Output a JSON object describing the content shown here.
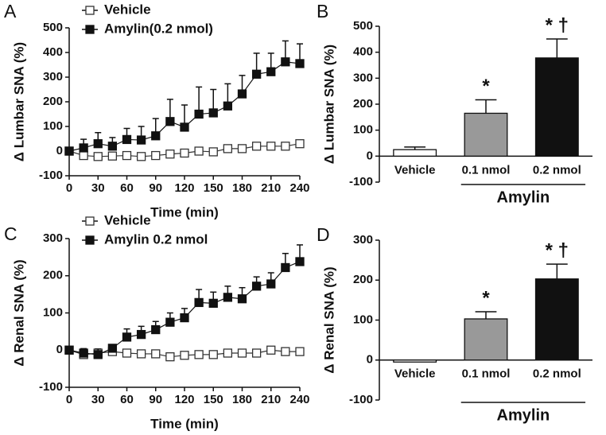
{
  "chart_data": [
    {
      "type": "line",
      "panel": "A",
      "xlabel": "Time (min)",
      "ylabel": "Δ Lumbar  SNA (%)",
      "x": [
        0,
        15,
        30,
        45,
        60,
        75,
        90,
        105,
        120,
        135,
        150,
        165,
        180,
        195,
        210,
        225,
        240
      ],
      "xlim": [
        0,
        240
      ],
      "xticks": [
        0,
        30,
        60,
        90,
        120,
        150,
        180,
        210,
        240
      ],
      "ylim": [
        -100,
        500
      ],
      "yticks": [
        -100,
        0,
        100,
        200,
        300,
        400,
        500
      ],
      "series": [
        {
          "name": "Vehicle",
          "color": "#333333",
          "marker": "open-square",
          "values": [
            0,
            -18,
            -22,
            -20,
            -18,
            -22,
            -18,
            -12,
            -8,
            0,
            -3,
            10,
            10,
            20,
            20,
            20,
            30
          ],
          "errors": [
            0,
            8,
            8,
            8,
            8,
            8,
            8,
            8,
            8,
            8,
            10,
            8,
            8,
            8,
            8,
            8,
            8
          ]
        },
        {
          "name": "Amylin(0.2 nmol)",
          "color": "#111111",
          "marker": "filled-square",
          "values": [
            0,
            13,
            30,
            20,
            47,
            45,
            62,
            120,
            97,
            150,
            155,
            183,
            232,
            312,
            322,
            362,
            355
          ],
          "errors": [
            0,
            35,
            45,
            35,
            45,
            55,
            70,
            90,
            90,
            110,
            95,
            90,
            75,
            85,
            75,
            85,
            80
          ]
        }
      ]
    },
    {
      "type": "bar",
      "panel": "B",
      "ylabel": "Δ Lumbar SNA (%)",
      "categories": [
        "Vehicle",
        "0.1 nmol",
        "0.2 nmol"
      ],
      "values": [
        25,
        165,
        378
      ],
      "errors": [
        10,
        52,
        73
      ],
      "colors": [
        "#ffffff",
        "#999999",
        "#111111"
      ],
      "annotations": [
        null,
        "*",
        "* †"
      ],
      "group_label": "Amylin",
      "ylim": [
        -100,
        500
      ],
      "yticks": [
        -100,
        0,
        100,
        200,
        300,
        400,
        500
      ]
    },
    {
      "type": "line",
      "panel": "C",
      "xlabel": "Time (min)",
      "ylabel": "Δ Renal  SNA (%)",
      "x": [
        0,
        15,
        30,
        45,
        60,
        75,
        90,
        105,
        120,
        135,
        150,
        165,
        180,
        195,
        210,
        225,
        240
      ],
      "xlim": [
        0,
        240
      ],
      "xticks": [
        0,
        30,
        60,
        90,
        120,
        150,
        180,
        210,
        240
      ],
      "ylim": [
        -100,
        300
      ],
      "yticks": [
        -100,
        0,
        100,
        200,
        300
      ],
      "series": [
        {
          "name": "Vehicle",
          "color": "#333333",
          "marker": "open-square",
          "values": [
            0,
            -12,
            -8,
            -4,
            -8,
            -10,
            -10,
            -18,
            -14,
            -12,
            -12,
            -8,
            -8,
            -8,
            0,
            -4,
            -4
          ],
          "errors": [
            0,
            5,
            5,
            5,
            5,
            5,
            5,
            5,
            5,
            5,
            5,
            5,
            5,
            5,
            5,
            5,
            5
          ]
        },
        {
          "name": "Amylin 0.2 nmol",
          "color": "#111111",
          "marker": "filled-square",
          "values": [
            0,
            -8,
            -12,
            5,
            35,
            42,
            55,
            75,
            87,
            128,
            126,
            142,
            138,
            172,
            178,
            222,
            238
          ],
          "errors": [
            0,
            12,
            15,
            10,
            22,
            22,
            22,
            25,
            25,
            35,
            30,
            30,
            30,
            25,
            30,
            38,
            45
          ]
        }
      ]
    },
    {
      "type": "bar",
      "panel": "D",
      "ylabel": "Δ Renal SNA (%)",
      "categories": [
        "Vehicle",
        "0.1 nmol",
        "0.2 nmol"
      ],
      "values": [
        -5,
        103,
        203
      ],
      "errors": [
        5,
        18,
        37
      ],
      "colors": [
        "#ffffff",
        "#999999",
        "#111111"
      ],
      "annotations": [
        null,
        "*",
        "* †"
      ],
      "group_label": "Amylin",
      "ylim": [
        -100,
        300
      ],
      "yticks": [
        -100,
        0,
        100,
        200,
        300
      ]
    }
  ]
}
